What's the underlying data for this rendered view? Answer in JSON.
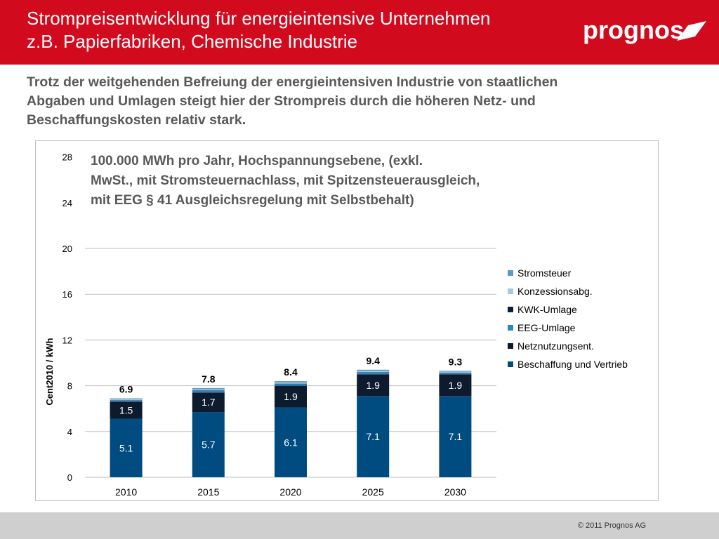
{
  "header": {
    "title_line1": "Strompreisentwicklung für energieintensive Unternehmen",
    "title_line2": "z.B. Papierfabriken, Chemische Industrie",
    "logo_text": "prognos"
  },
  "subtitle": {
    "line1": "Trotz der weitgehenden Befreiung der energieintensiven Industrie von staatlichen",
    "line2": "Abgaben und Umlagen steigt hier der Strompreis durch die höheren Netz- und",
    "line3": "Beschaffungskosten relativ stark."
  },
  "footer": {
    "copyright": "© 2011 Prognos AG"
  },
  "colors": {
    "header_bg": "#d20a1e"
  },
  "chart_data": {
    "type": "bar",
    "stacked": true,
    "title_lines": [
      "100.000 MWh pro Jahr, Hochspannungsebene, (exkl.",
      "MwSt., mit Stromsteuernachlass, mit Spitzensteuerausgleich,",
      "mit EEG § 41 Ausgleichsregelung mit Selbstbehalt)"
    ],
    "ylabel": "Cent2010 / kWh",
    "xlabel": "",
    "ylim": [
      0,
      28
    ],
    "yticks": [
      0,
      4,
      8,
      12,
      16,
      20,
      24,
      28
    ],
    "categories": [
      "2010",
      "2015",
      "2020",
      "2025",
      "2030"
    ],
    "series": [
      {
        "name": "Beschaffung und Vertrieb",
        "color": "#004b7f",
        "values": [
          5.1,
          5.7,
          6.1,
          7.1,
          7.1
        ],
        "labels": [
          "5.1",
          "5.7",
          "6.1",
          "7.1",
          "7.1"
        ]
      },
      {
        "name": "Netznutzungsent.",
        "color": "#0d1b2e",
        "values": [
          1.5,
          1.7,
          1.9,
          1.9,
          1.9
        ],
        "labels": [
          "1.5",
          "1.7",
          "1.9",
          "1.9",
          "1.9"
        ]
      },
      {
        "name": "EEG-Umlage",
        "color": "#2a86c4",
        "values": [
          0.1,
          0.15,
          0.15,
          0.15,
          0.1
        ]
      },
      {
        "name": "KWK-Umlage",
        "color": "#0b1e3a",
        "values": [
          0.03,
          0.03,
          0.03,
          0.03,
          0.03
        ]
      },
      {
        "name": "Konzessionsabg.",
        "color": "#a9c9df",
        "values": [
          0.1,
          0.1,
          0.1,
          0.1,
          0.1
        ]
      },
      {
        "name": "Stromsteuer",
        "color": "#5b9bc8",
        "values": [
          0.07,
          0.12,
          0.12,
          0.12,
          0.07
        ]
      }
    ],
    "totals": [
      "6.9",
      "7.8",
      "8.4",
      "9.4",
      "9.3"
    ],
    "legend_position": "right",
    "grid": true
  }
}
